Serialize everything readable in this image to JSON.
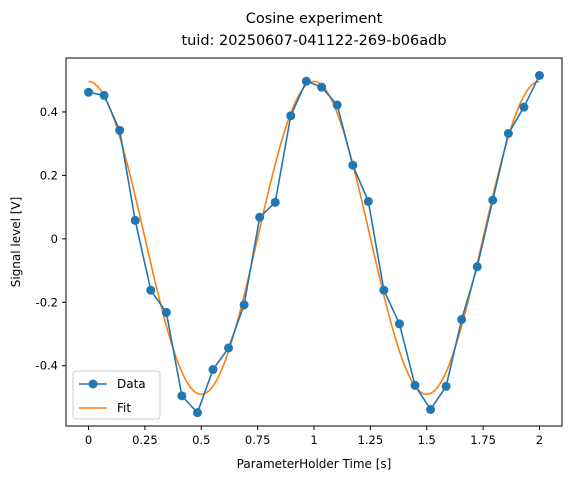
{
  "chart_data": {
    "type": "line",
    "title": "Cosine experiment",
    "subtitle": "tuid: 20250607-041122-269-b06adb",
    "xlabel": "ParameterHolder Time [s]",
    "ylabel": "Signal level [V]",
    "xlim": [
      -0.1,
      2.1
    ],
    "ylim": [
      -0.59,
      0.57
    ],
    "x_ticks": [
      0,
      0.25,
      0.5,
      0.75,
      1,
      1.25,
      1.5,
      1.75,
      2
    ],
    "x_tick_labels": [
      "0",
      "0.25",
      "0.5",
      "0.75",
      "1",
      "1.25",
      "1.5",
      "1.75",
      "2"
    ],
    "y_ticks": [
      -0.4,
      -0.2,
      0,
      0.2,
      0.4
    ],
    "y_tick_labels": [
      "-0.4",
      "-0.2",
      "0",
      "0.2",
      "0.4"
    ],
    "grid": false,
    "legend_position": "lower-left",
    "series": [
      {
        "name": "Data",
        "color": "#1f77b4",
        "marker": "circle",
        "x": [
          0,
          0.069,
          0.138,
          0.207,
          0.276,
          0.345,
          0.414,
          0.483,
          0.552,
          0.621,
          0.69,
          0.759,
          0.828,
          0.897,
          0.966,
          1.034,
          1.103,
          1.172,
          1.241,
          1.31,
          1.379,
          1.448,
          1.517,
          1.586,
          1.655,
          1.724,
          1.793,
          1.862,
          1.931,
          2.0
        ],
        "y": [
          0.462,
          0.452,
          0.342,
          0.058,
          -0.162,
          -0.232,
          -0.495,
          -0.548,
          -0.412,
          -0.344,
          -0.208,
          0.068,
          0.115,
          0.388,
          0.497,
          0.478,
          0.422,
          0.232,
          0.118,
          -0.162,
          -0.268,
          -0.462,
          -0.538,
          -0.465,
          -0.254,
          -0.088,
          0.122,
          0.332,
          0.415,
          0.515
        ]
      },
      {
        "name": "Fit",
        "color": "#ff7f0e",
        "function": "cosine",
        "amplitude": 0.493,
        "period_s": 1.0,
        "offset": 0.003,
        "x_range": [
          0,
          2
        ]
      }
    ]
  }
}
